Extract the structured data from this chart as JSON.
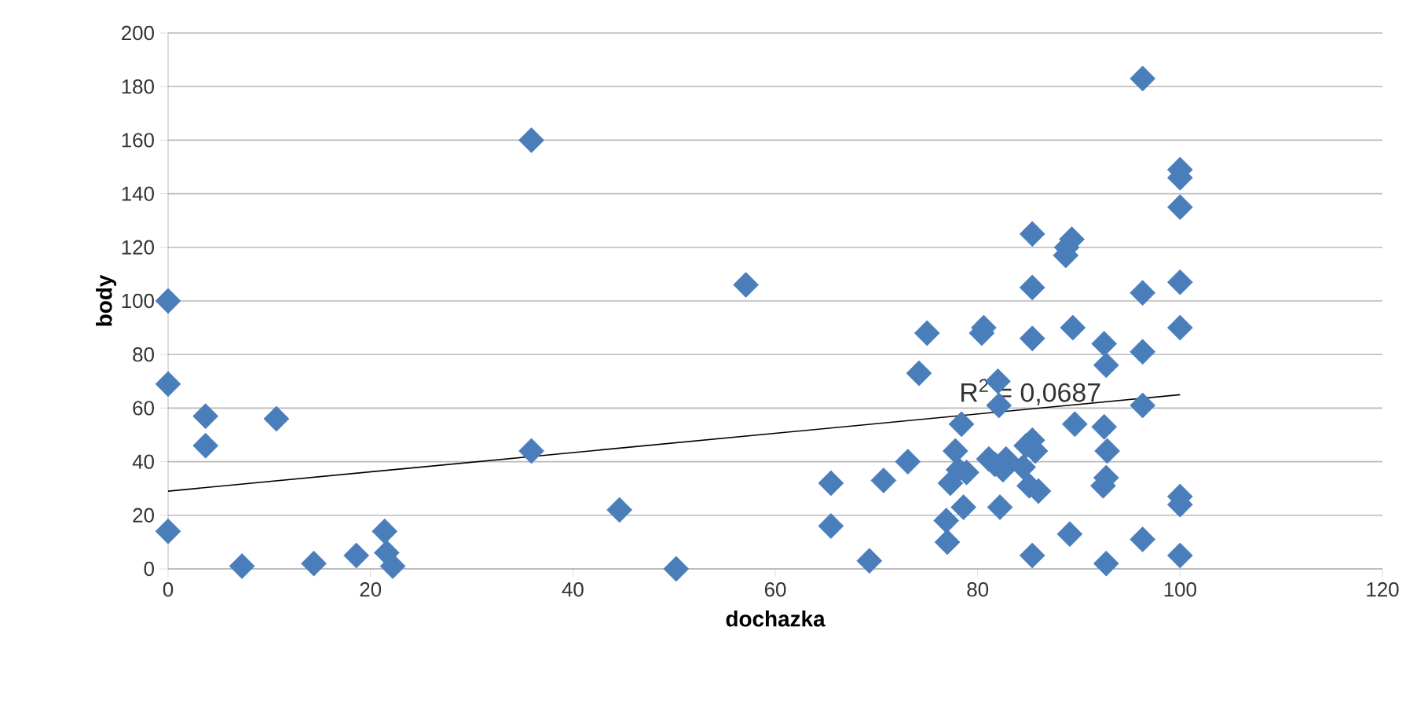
{
  "chart_data": {
    "type": "scatter",
    "xlabel": "dochazka",
    "ylabel": "body",
    "xlim": [
      0,
      120
    ],
    "ylim": [
      0,
      200
    ],
    "xticks": [
      0,
      20,
      40,
      60,
      80,
      100,
      120
    ],
    "yticks": [
      0,
      20,
      40,
      60,
      80,
      100,
      120,
      140,
      160,
      180,
      200
    ],
    "grid": "y",
    "marker": "diamond",
    "series": [
      {
        "color": "#4a7ebb",
        "x": [
          0,
          0,
          0,
          3.7,
          3.7,
          7.3,
          10.7,
          14.4,
          18.6,
          21.4,
          21.6,
          22.2,
          35.9,
          35.9,
          44.6,
          50.2,
          57.1,
          65.5,
          65.5,
          69.3,
          70.7,
          73.1,
          74.2,
          75,
          76.9,
          77,
          77.3,
          77.8,
          78.1,
          78.6,
          78.4,
          78.9,
          80.4,
          80.6,
          81.1,
          81.7,
          82,
          82.1,
          82.2,
          82.5,
          82.8,
          84.5,
          84.8,
          85.1,
          85.4,
          85.4,
          85.4,
          85.4,
          85.4,
          85.7,
          86,
          88.8,
          89.3,
          88.7,
          89.4,
          89.6,
          89.1,
          92.5,
          92.7,
          92.5,
          92.8,
          92.7,
          92.4,
          92.7,
          96.3,
          96.3,
          96.3,
          96.3,
          96.3,
          100,
          100,
          100,
          100,
          100,
          100,
          100,
          100
        ],
        "values": [
          100,
          69,
          14,
          57,
          46,
          1,
          56,
          2,
          5,
          14,
          6,
          1,
          160,
          44,
          22,
          0,
          106,
          32,
          16,
          3,
          33,
          40,
          73,
          88,
          18,
          10,
          32,
          44,
          37,
          23,
          54,
          36,
          88,
          90,
          41,
          39,
          70,
          61,
          23,
          37,
          41,
          38,
          46,
          31,
          125,
          105,
          86,
          5,
          48,
          44,
          29,
          120,
          123,
          117,
          90,
          54,
          13,
          84,
          76,
          53,
          44,
          34,
          31,
          2,
          183,
          103,
          81,
          61,
          11,
          149,
          146,
          135,
          107,
          90,
          27,
          24,
          5
        ]
      },
      {
        "type": "line",
        "color": "#000000",
        "marker": "none",
        "x": [
          0,
          100
        ],
        "values": [
          29,
          65
        ]
      }
    ],
    "annotations": [
      "R$^{2}$ = 0,0687"
    ]
  }
}
